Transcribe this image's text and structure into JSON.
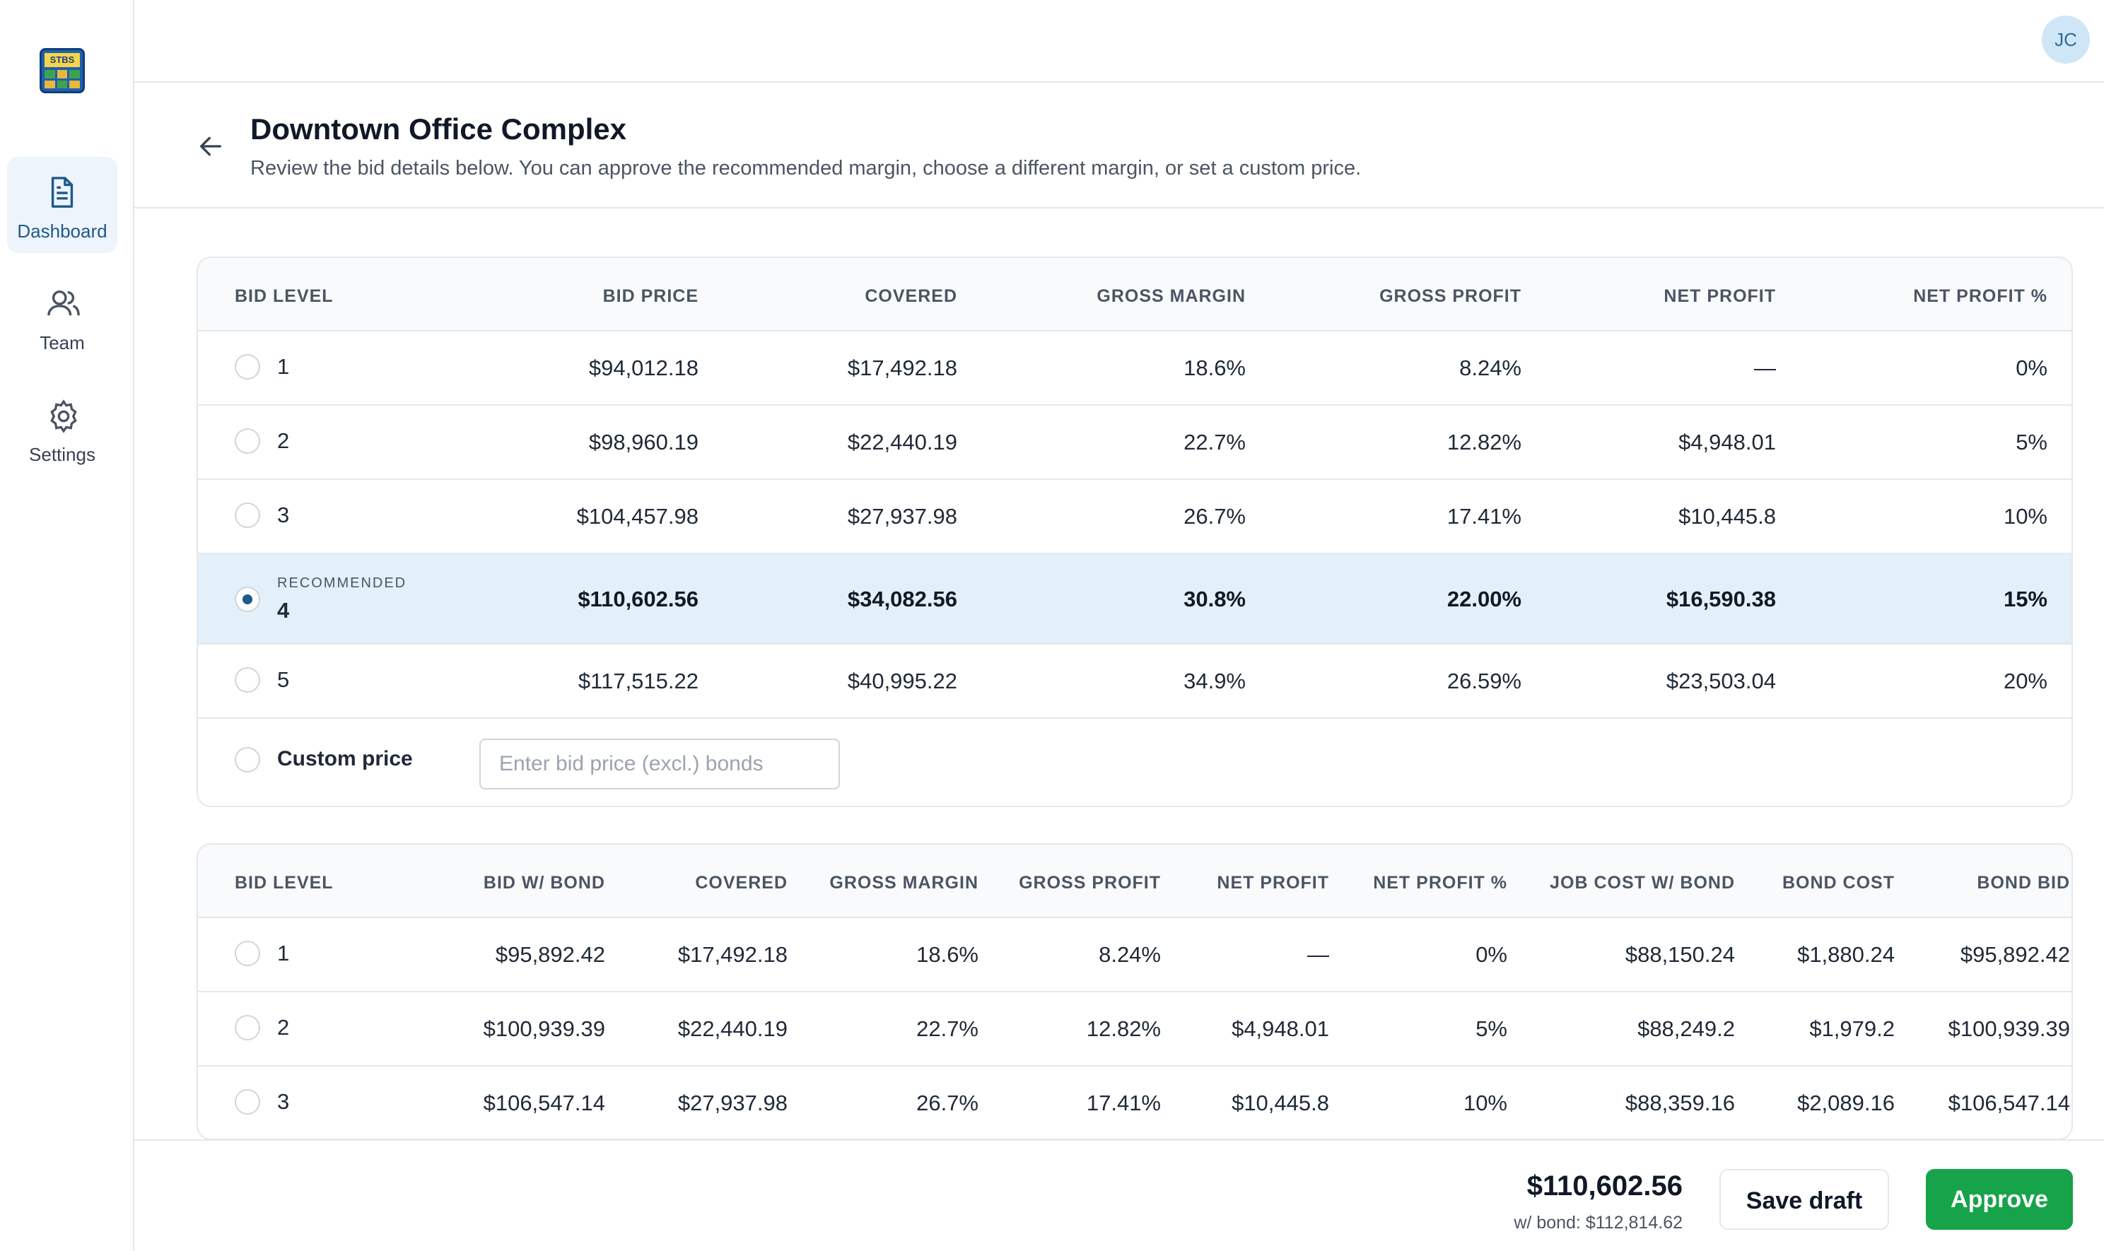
{
  "app": {
    "logo_text": "STBS"
  },
  "sidebar": {
    "items": [
      {
        "label": "Dashboard",
        "icon": "document-icon",
        "active": true
      },
      {
        "label": "Team",
        "icon": "users-icon",
        "active": false
      },
      {
        "label": "Settings",
        "icon": "gear-icon",
        "active": false
      }
    ]
  },
  "user": {
    "initials": "JC"
  },
  "page": {
    "title": "Downtown Office Complex",
    "subtitle": "Review the bid details below. You can approve the recommended margin, choose a different margin, or set a custom price."
  },
  "table1": {
    "headers": [
      "BID LEVEL",
      "BID PRICE",
      "COVERED",
      "GROSS MARGIN",
      "GROSS PROFIT",
      "NET PROFIT",
      "NET PROFIT %"
    ],
    "rows": [
      {
        "level": "1",
        "values": [
          "$94,012.18",
          "$17,492.18",
          "18.6%",
          "8.24%",
          "—",
          "0%"
        ]
      },
      {
        "level": "2",
        "values": [
          "$98,960.19",
          "$22,440.19",
          "22.7%",
          "12.82%",
          "$4,948.01",
          "5%"
        ]
      },
      {
        "level": "3",
        "values": [
          "$104,457.98",
          "$27,937.98",
          "26.7%",
          "17.41%",
          "$10,445.8",
          "10%"
        ]
      },
      {
        "level": "4",
        "recommended_label": "RECOMMENDED",
        "values": [
          "$110,602.56",
          "$34,082.56",
          "30.8%",
          "22.00%",
          "$16,590.38",
          "15%"
        ]
      },
      {
        "level": "5",
        "values": [
          "$117,515.22",
          "$40,995.22",
          "34.9%",
          "26.59%",
          "$23,503.04",
          "20%"
        ]
      }
    ],
    "selected_level": "4",
    "custom_label": "Custom price",
    "custom_placeholder": "Enter bid price (excl.) bonds"
  },
  "table2": {
    "headers": [
      "BID LEVEL",
      "BID W/ BOND",
      "COVERED",
      "GROSS MARGIN",
      "GROSS PROFIT",
      "NET PROFIT",
      "NET PROFIT %",
      "JOB COST W/ BOND",
      "BOND COST",
      "BOND BID"
    ],
    "rows": [
      {
        "level": "1",
        "values": [
          "$95,892.42",
          "$17,492.18",
          "18.6%",
          "8.24%",
          "—",
          "0%",
          "$88,150.24",
          "$1,880.24",
          "$95,892.42"
        ]
      },
      {
        "level": "2",
        "values": [
          "$100,939.39",
          "$22,440.19",
          "22.7%",
          "12.82%",
          "$4,948.01",
          "5%",
          "$88,249.2",
          "$1,979.2",
          "$100,939.39"
        ]
      },
      {
        "level": "3",
        "values": [
          "$106,547.14",
          "$27,937.98",
          "26.7%",
          "17.41%",
          "$10,445.8",
          "10%",
          "$88,359.16",
          "$2,089.16",
          "$106,547.14"
        ]
      }
    ]
  },
  "footer": {
    "total": "$110,602.56",
    "with_bond": "w/ bond: $112,814.62",
    "save_label": "Save draft",
    "approve_label": "Approve"
  },
  "colors": {
    "accent": "#1e5a8a",
    "selected_row": "#e3f0fa",
    "approve": "#16a34a"
  }
}
